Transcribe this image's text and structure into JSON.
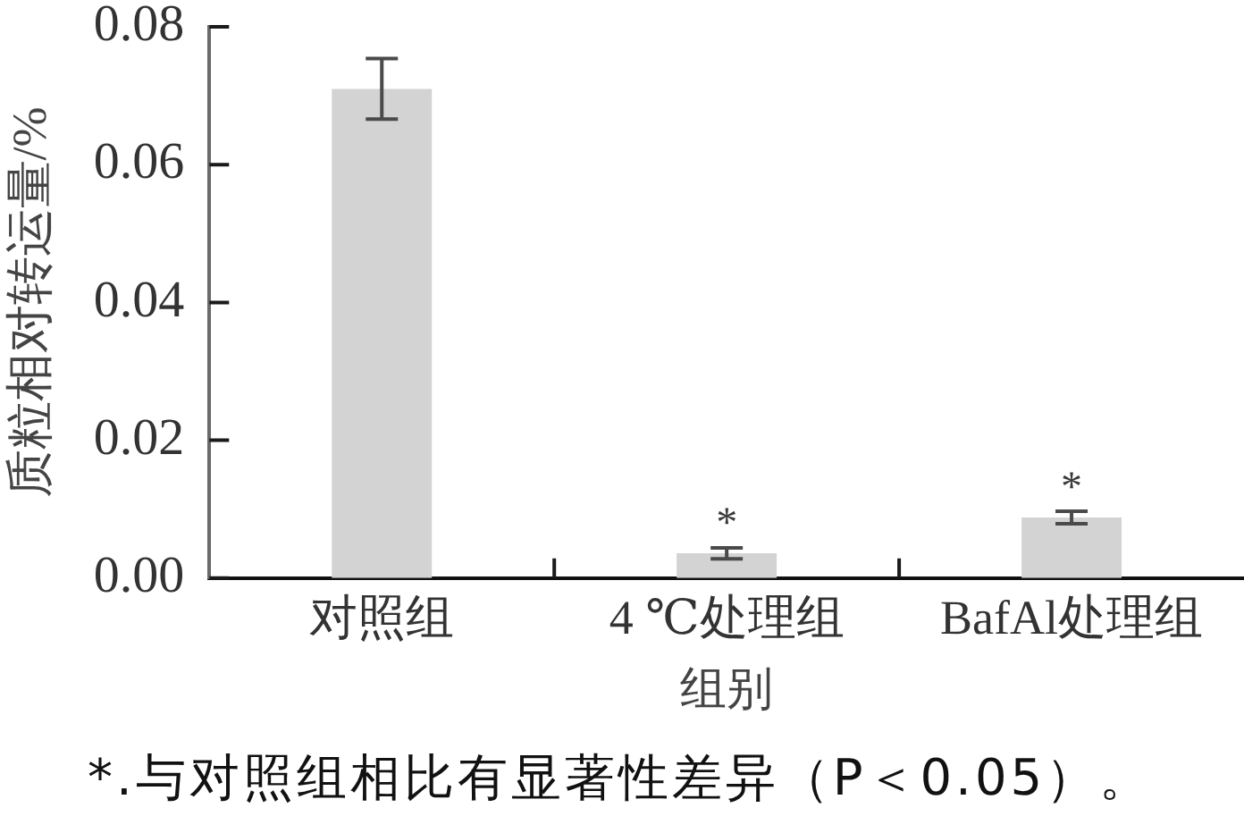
{
  "chart_data": {
    "type": "bar",
    "xlabel": "组别",
    "ylabel": "质粒相对转运量/%",
    "categories": [
      "对照组",
      "4 ℃处理组",
      "BafAl处理组"
    ],
    "values": [
      0.071,
      0.0036,
      0.0088
    ],
    "errors": [
      0.0044,
      0.0008,
      0.0009
    ],
    "color": "#d3d3d3",
    "ylim": [
      0,
      0.08
    ],
    "yticks": [
      {
        "value": 0,
        "label": "0.00"
      },
      {
        "value": 0.02,
        "label": "0.02"
      },
      {
        "value": 0.04,
        "label": "0.04"
      },
      {
        "value": 0.06,
        "label": "0.06"
      },
      {
        "value": 0.08,
        "label": "0.08"
      }
    ],
    "annotations": [
      {
        "text": "*",
        "x": "4 ℃处理组",
        "y": 0.0036
      },
      {
        "text": "*",
        "x": "BafAl处理组",
        "y": 0.0088
      },
      "*.与对照组相比有显著性差异（P＜0.05）。"
    ]
  }
}
